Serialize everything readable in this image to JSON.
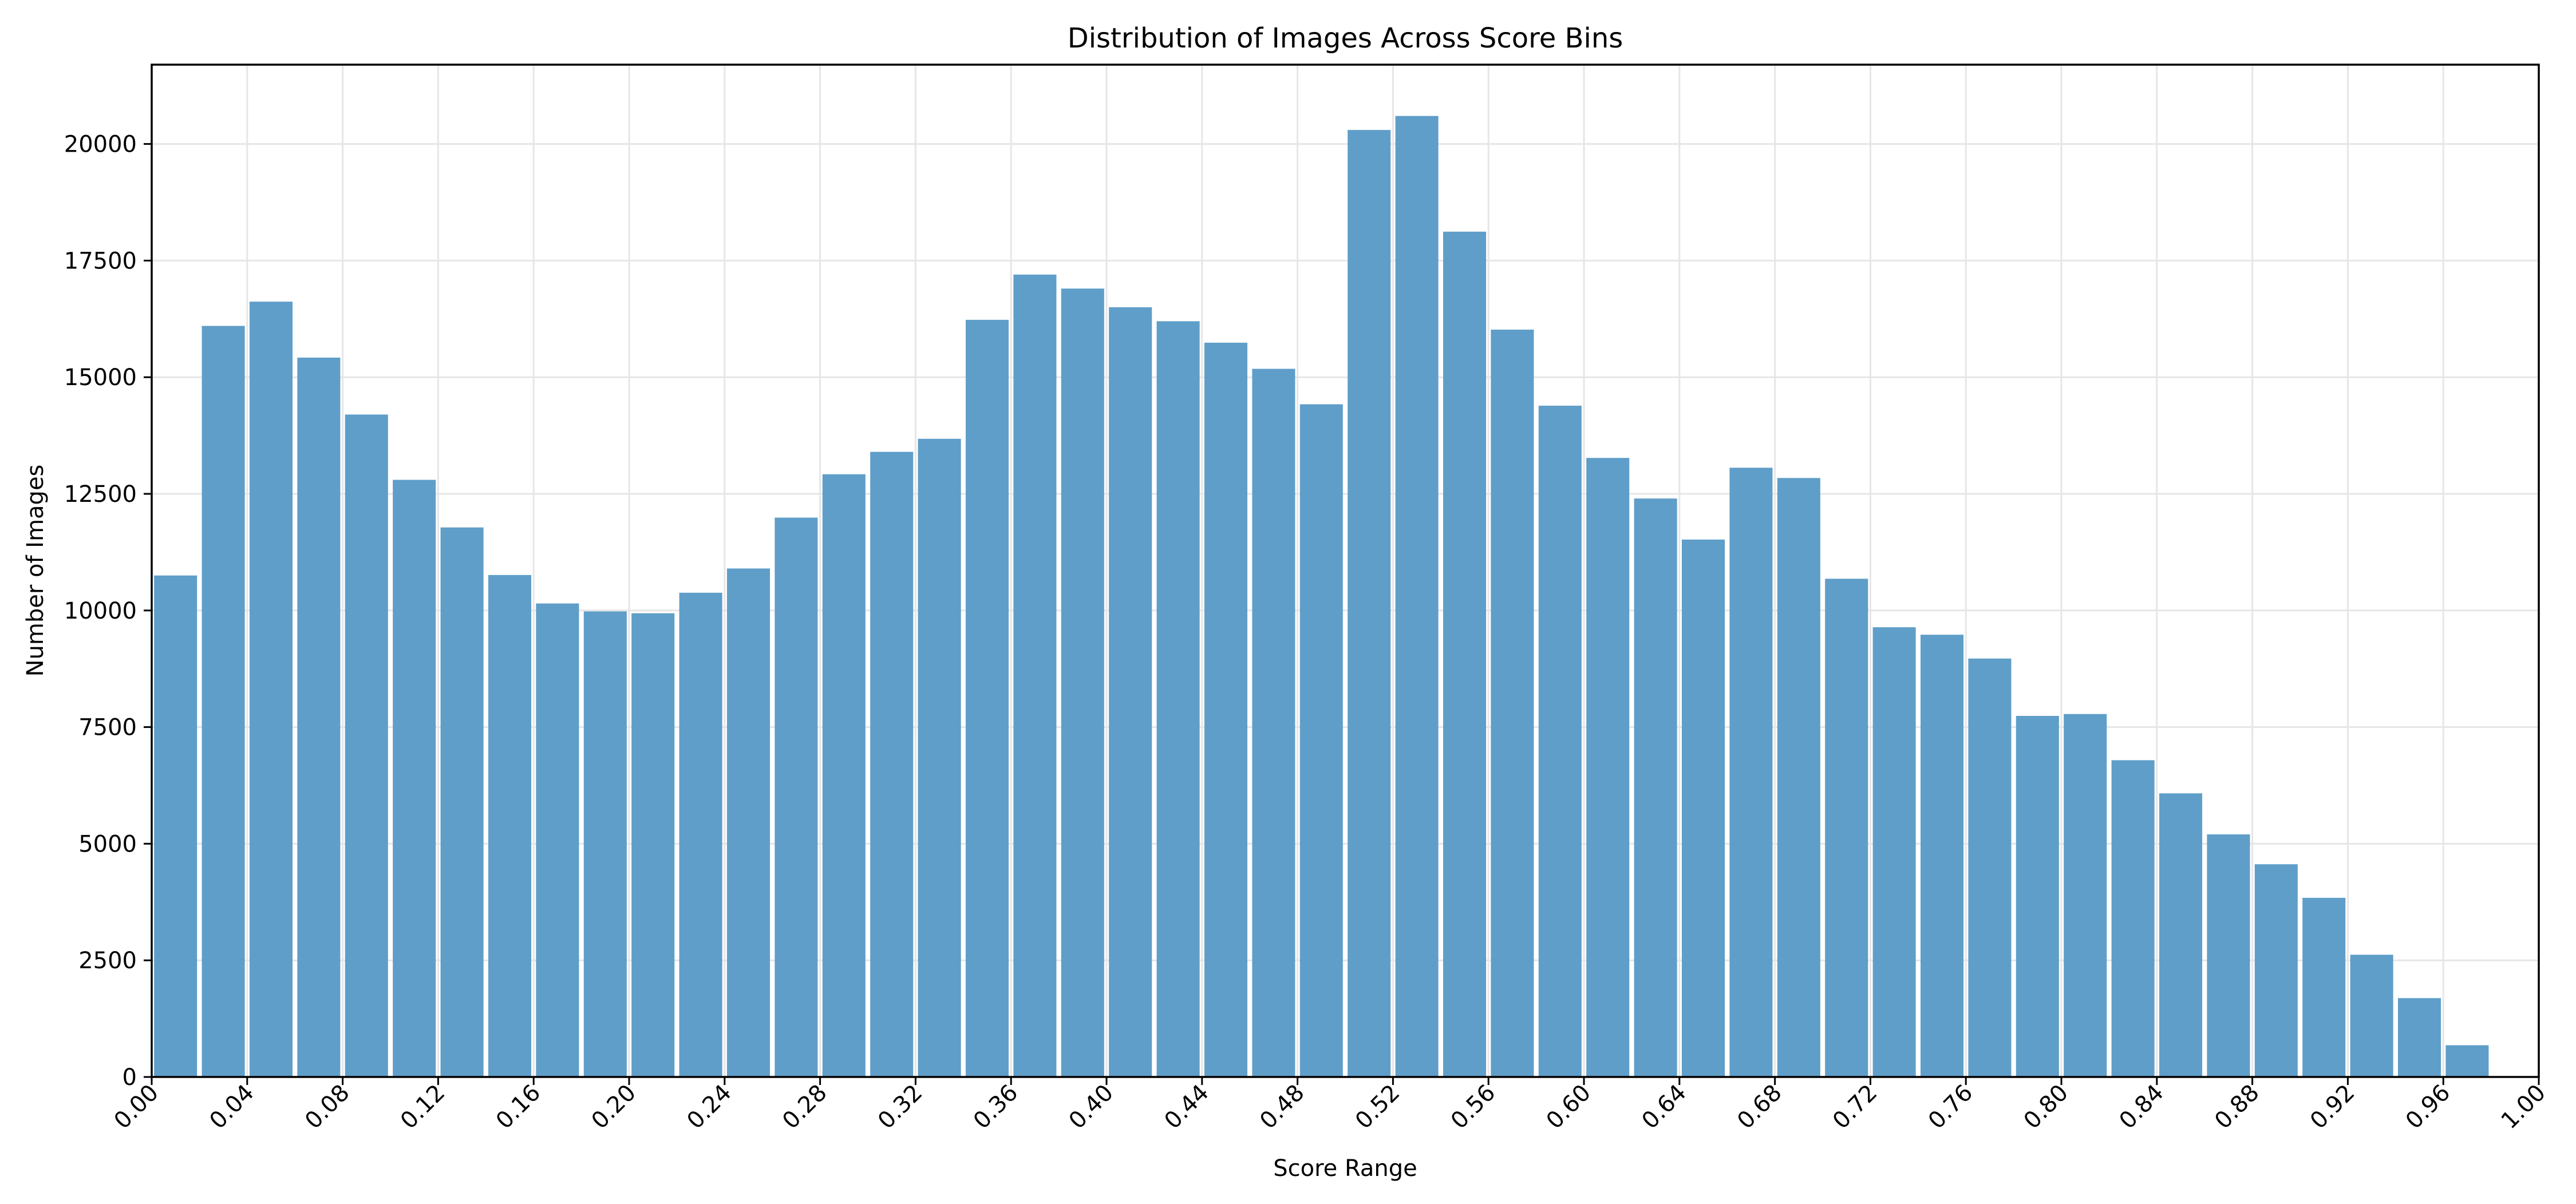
{
  "chart_data": {
    "type": "bar",
    "title": "Distribution of Images Across Score Bins",
    "xlabel": "Score Range",
    "ylabel": "Number of Images",
    "bin_edges_start": 0.0,
    "bin_width": 0.02,
    "xlim": [
      0.0,
      1.0
    ],
    "ylim": [
      0,
      21700
    ],
    "x_ticks": [
      0.0,
      0.04,
      0.08,
      0.12,
      0.16,
      0.2,
      0.24,
      0.28,
      0.32,
      0.36,
      0.4,
      0.44,
      0.48,
      0.52,
      0.56,
      0.6,
      0.64,
      0.68,
      0.72,
      0.76,
      0.8,
      0.84,
      0.88,
      0.92,
      0.96,
      1.0
    ],
    "x_tick_labels": [
      "0.00",
      "0.04",
      "0.08",
      "0.12",
      "0.16",
      "0.20",
      "0.24",
      "0.28",
      "0.32",
      "0.36",
      "0.40",
      "0.44",
      "0.48",
      "0.52",
      "0.56",
      "0.60",
      "0.64",
      "0.68",
      "0.72",
      "0.76",
      "0.80",
      "0.84",
      "0.88",
      "0.92",
      "0.96",
      "1.00"
    ],
    "y_ticks": [
      0,
      2500,
      5000,
      7500,
      10000,
      12500,
      15000,
      17500,
      20000
    ],
    "y_tick_labels": [
      "0",
      "2500",
      "5000",
      "7500",
      "10000",
      "12500",
      "15000",
      "17500",
      "20000"
    ],
    "values": [
      10750,
      16100,
      16620,
      15420,
      14200,
      12800,
      11780,
      10760,
      10150,
      9980,
      9940,
      10380,
      10900,
      11990,
      12920,
      13400,
      13680,
      16230,
      17200,
      16900,
      16500,
      16200,
      15740,
      15180,
      14420,
      20300,
      20600,
      18120,
      16020,
      14390,
      13270,
      12400,
      11520,
      13060,
      12840,
      10680,
      9640,
      9480,
      8970,
      7740,
      7780,
      6790,
      6080,
      5200,
      4560,
      3840,
      2620,
      1690,
      680,
      0
    ],
    "bar_color": "#5f9ec9",
    "grid": true,
    "grid_color": "#e6e6e6"
  }
}
